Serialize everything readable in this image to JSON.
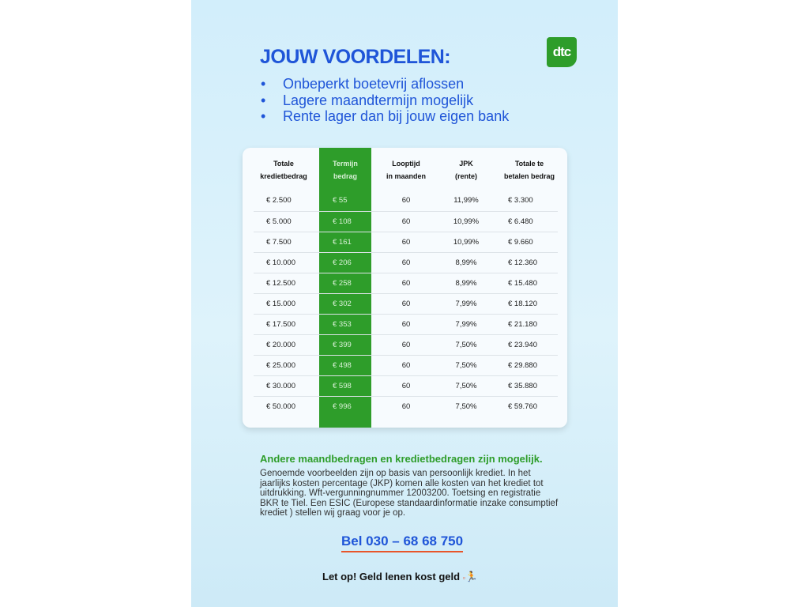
{
  "header": {
    "title": "JOUW VOORDELEN:",
    "logo_text": "dtc",
    "benefits": [
      "Onbeperkt boetevrij aflossen",
      "Lagere maandtermijn mogelijk",
      "Rente lager dan bij jouw eigen bank"
    ]
  },
  "table": {
    "headers": [
      [
        "Totale",
        "kredietbedrag"
      ],
      [
        "Termijn",
        "bedrag"
      ],
      [
        "Looptijd",
        "in maanden"
      ],
      [
        "JPK",
        "(rente)"
      ],
      [
        "Totale te",
        "betalen bedrag"
      ]
    ],
    "rows": [
      [
        "€ 2.500",
        "€ 55",
        "60",
        "11,99%",
        "€ 3.300"
      ],
      [
        "€ 5.000",
        "€ 108",
        "60",
        "10,99%",
        "€ 6.480"
      ],
      [
        "€ 7.500",
        "€ 161",
        "60",
        "10,99%",
        "€ 9.660"
      ],
      [
        "€ 10.000",
        "€ 206",
        "60",
        "8,99%",
        "€ 12.360"
      ],
      [
        "€ 12.500",
        "€ 258",
        "60",
        "8,99%",
        "€ 15.480"
      ],
      [
        "€ 15.000",
        "€ 302",
        "60",
        "7,99%",
        "€ 18.120"
      ],
      [
        "€ 17.500",
        "€ 353",
        "60",
        "7,99%",
        "€ 21.180"
      ],
      [
        "€ 20.000",
        "€ 399",
        "60",
        "7,50%",
        "€ 23.940"
      ],
      [
        "€ 25.000",
        "€ 498",
        "60",
        "7,50%",
        "€ 29.880"
      ],
      [
        "€ 30.000",
        "€ 598",
        "60",
        "7,50%",
        "€ 35.880"
      ],
      [
        "€ 50.000",
        "€ 996",
        "60",
        "7,50%",
        "€ 59.760"
      ]
    ],
    "highlight_color": "#2e9d2a"
  },
  "footer": {
    "subheading": "Andere maandbedragen en kredietbedragen zijn mogelijk.",
    "disclaimer": "Genoemde voorbeelden zijn op basis van persoonlijk krediet. In het jaarlijks kosten percentage (JKP) komen alle kosten van het krediet tot uitdrukking. Wft-vergunningnummer 12003200. Toetsing en registratie BKR te Tiel. Een ESIC (Europese standaardinformatie inzake consumptief krediet ) stellen wij graag voor je op.",
    "phone": "Bel 030 – 68 68 750",
    "warning": "Let op! Geld lenen kost geld",
    "warning_icon": "running-man-with-money-icon"
  }
}
